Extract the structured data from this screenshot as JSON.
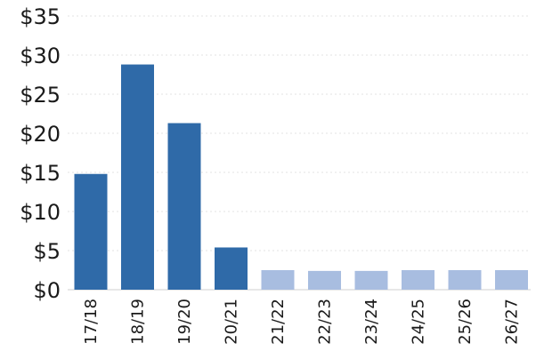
{
  "chart_data": {
    "type": "bar",
    "title": "",
    "xlabel": "",
    "ylabel": "",
    "categories": [
      "17/18",
      "18/19",
      "19/20",
      "20/21",
      "21/22",
      "22/23",
      "23/24",
      "24/25",
      "25/26",
      "26/27"
    ],
    "values": [
      14.8,
      28.8,
      21.3,
      5.4,
      2.5,
      2.4,
      2.4,
      2.5,
      2.5,
      2.5
    ],
    "bar_colors": [
      "#2f6aa8",
      "#2f6aa8",
      "#2f6aa8",
      "#2f6aa8",
      "#a8bde0",
      "#a8bde0",
      "#a8bde0",
      "#a8bde0",
      "#a8bde0",
      "#a8bde0"
    ],
    "ylim": [
      0,
      35
    ],
    "yticks": [
      0,
      5,
      10,
      15,
      20,
      25,
      30,
      35
    ],
    "ytick_labels": [
      "$0",
      "$5",
      "$10",
      "$15",
      "$20",
      "$25",
      "$30",
      "$35"
    ],
    "grid": true,
    "legend": "none"
  }
}
